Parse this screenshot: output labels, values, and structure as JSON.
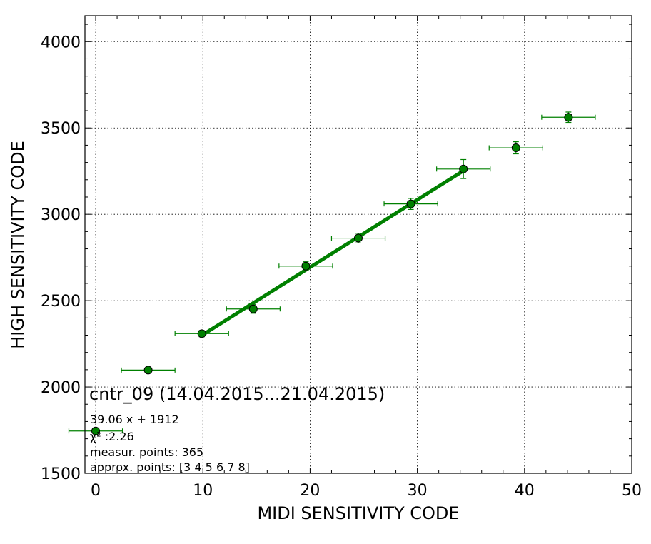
{
  "chart_data": {
    "type": "scatter",
    "title": "cntr_09 (14.04.2015...21.04.2015)",
    "xlabel": "MIDI SENSITIVITY CODE",
    "ylabel": "HIGH SENSITIVITY CODE",
    "xlim": [
      -1,
      50
    ],
    "ylim": [
      1500,
      4150
    ],
    "xticks": [
      0,
      10,
      20,
      30,
      40,
      50
    ],
    "yticks": [
      1500,
      2000,
      2500,
      3000,
      3500,
      4000
    ],
    "grid": true,
    "annotations": [
      "39.06 x + 1912",
      "χ² :2.26",
      "measur. points: 365",
      "approx. points: [3 4 5 6 7 8]"
    ],
    "series": [
      {
        "type": "errorbar",
        "color": "#008000",
        "points": [
          {
            "x": 0,
            "y": 1745,
            "xerr": 2.5,
            "yerr": 15
          },
          {
            "x": 4.9,
            "y": 2098,
            "xerr": 2.5,
            "yerr": 12
          },
          {
            "x": 9.9,
            "y": 2309,
            "xerr": 2.5,
            "yerr": 18
          },
          {
            "x": 14.7,
            "y": 2452,
            "xerr": 2.5,
            "yerr": 25
          },
          {
            "x": 19.6,
            "y": 2700,
            "xerr": 2.5,
            "yerr": 25
          },
          {
            "x": 24.5,
            "y": 2862,
            "xerr": 2.5,
            "yerr": 28
          },
          {
            "x": 29.4,
            "y": 3060,
            "xerr": 2.5,
            "yerr": 32
          },
          {
            "x": 34.3,
            "y": 3262,
            "xerr": 2.5,
            "yerr": 55
          },
          {
            "x": 39.2,
            "y": 3385,
            "xerr": 2.5,
            "yerr": 35
          },
          {
            "x": 44.1,
            "y": 3562,
            "xerr": 2.5,
            "yerr": 30
          }
        ]
      },
      {
        "type": "line",
        "color": "#008000",
        "x": [
          9.9,
          34.3
        ],
        "y": [
          2299,
          3252
        ]
      }
    ]
  }
}
